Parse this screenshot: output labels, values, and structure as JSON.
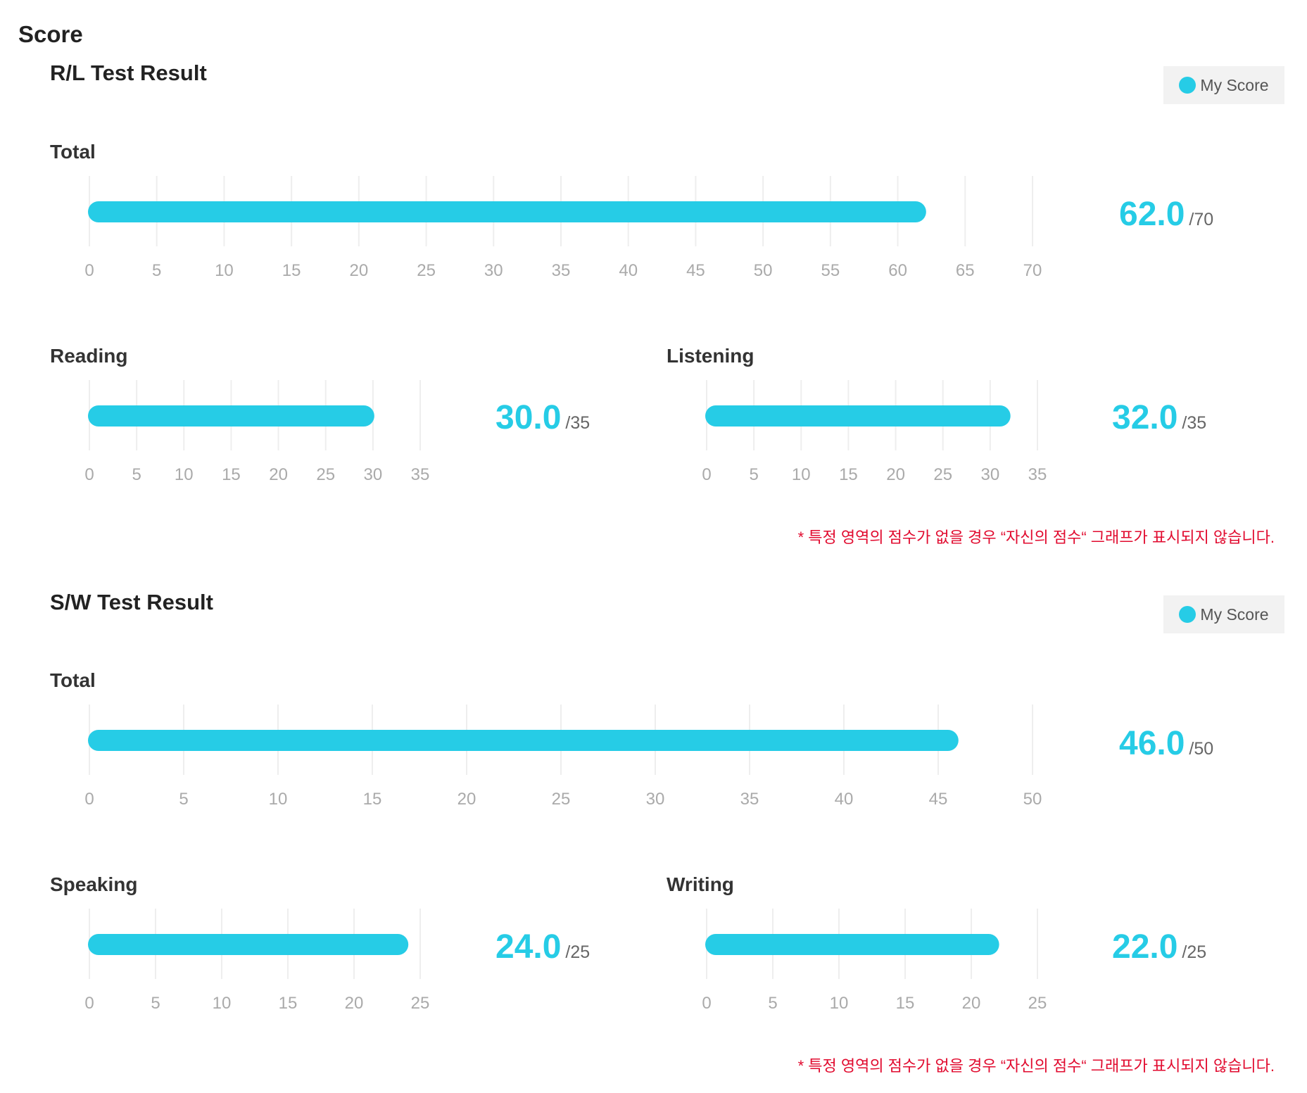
{
  "page_title": "Score",
  "colors": {
    "accent": "#26cce6",
    "grid": "#eeeeee",
    "note": "#e10a2e"
  },
  "sections": [
    {
      "title": "R/L Test Result",
      "legend": "My Score",
      "note": "* 특정 영역의 점수가 없을 경우 “자신의 점수“ 그래프가 표시되지 않습니다."
    },
    {
      "title": "S/W Test Result",
      "legend": "My Score",
      "note": "* 특정 영역의 점수가 없을 경우 “자신의 점수“ 그래프가 표시되지 않습니다."
    }
  ],
  "chart_data": [
    {
      "type": "bar",
      "orientation": "horizontal",
      "title": "Total",
      "series": [
        {
          "name": "My Score",
          "values": [
            62.0
          ]
        }
      ],
      "score_label": "62.0",
      "max_label": "/70",
      "xlim": [
        0,
        70
      ],
      "ticks": [
        0,
        5,
        10,
        15,
        20,
        25,
        30,
        35,
        40,
        45,
        50,
        55,
        60,
        65,
        70
      ],
      "grid": true
    },
    {
      "type": "bar",
      "orientation": "horizontal",
      "title": "Reading",
      "series": [
        {
          "name": "My Score",
          "values": [
            30.0
          ]
        }
      ],
      "score_label": "30.0",
      "max_label": "/35",
      "xlim": [
        0,
        35
      ],
      "ticks": [
        0,
        5,
        10,
        15,
        20,
        25,
        30,
        35
      ],
      "grid": true
    },
    {
      "type": "bar",
      "orientation": "horizontal",
      "title": "Listening",
      "series": [
        {
          "name": "My Score",
          "values": [
            32.0
          ]
        }
      ],
      "score_label": "32.0",
      "max_label": "/35",
      "xlim": [
        0,
        35
      ],
      "ticks": [
        0,
        5,
        10,
        15,
        20,
        25,
        30,
        35
      ],
      "grid": true
    },
    {
      "type": "bar",
      "orientation": "horizontal",
      "title": "Total",
      "series": [
        {
          "name": "My Score",
          "values": [
            46.0
          ]
        }
      ],
      "score_label": "46.0",
      "max_label": "/50",
      "xlim": [
        0,
        50
      ],
      "ticks": [
        0,
        5,
        10,
        15,
        20,
        25,
        30,
        35,
        40,
        45,
        50
      ],
      "grid": true
    },
    {
      "type": "bar",
      "orientation": "horizontal",
      "title": "Speaking",
      "series": [
        {
          "name": "My Score",
          "values": [
            24.0
          ]
        }
      ],
      "score_label": "24.0",
      "max_label": "/25",
      "xlim": [
        0,
        25
      ],
      "ticks": [
        0,
        5,
        10,
        15,
        20,
        25
      ],
      "grid": true
    },
    {
      "type": "bar",
      "orientation": "horizontal",
      "title": "Writing",
      "series": [
        {
          "name": "My Score",
          "values": [
            22.0
          ]
        }
      ],
      "score_label": "22.0",
      "max_label": "/25",
      "xlim": [
        0,
        25
      ],
      "ticks": [
        0,
        5,
        10,
        15,
        20,
        25
      ],
      "grid": true
    }
  ]
}
